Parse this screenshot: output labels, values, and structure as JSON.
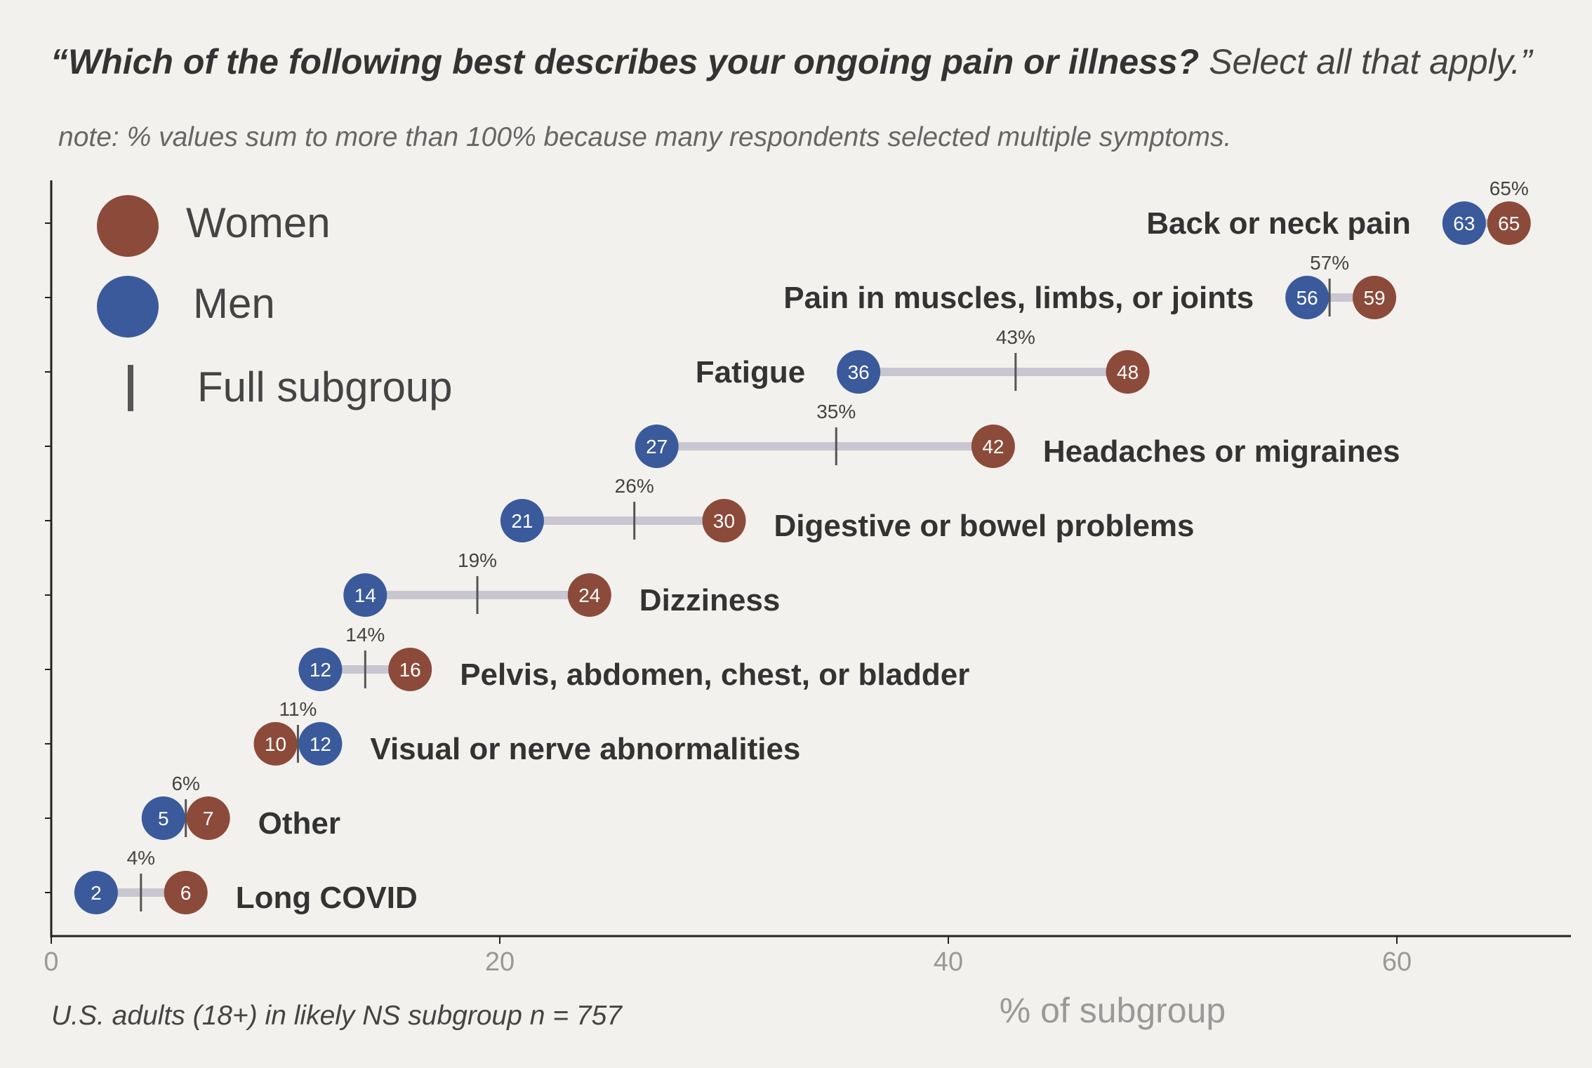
{
  "title": {
    "question": "“Which of the following best describes your ongoing pain or illness?",
    "instruction": "Select all that apply.”"
  },
  "note": "note: % values sum to more than 100% because many respondents selected multiple symptoms.",
  "legend": {
    "women": "Women",
    "men": "Men",
    "full": "Full subgroup"
  },
  "footer": "U.S. adults (18+) in likely NS subgroup n = 757",
  "colors": {
    "women": "#8c4a3a",
    "men": "#3a5a9c",
    "connector": "#c8c6d0",
    "full_tick": "#555555",
    "axis": "#222222"
  },
  "chart_data": {
    "type": "dumbbell",
    "xlabel": "% of subgroup",
    "xlim": [
      0,
      67
    ],
    "xticks": [
      0,
      20,
      40,
      60
    ],
    "series": [
      {
        "name": "Women"
      },
      {
        "name": "Men"
      },
      {
        "name": "Full subgroup"
      }
    ],
    "rows": [
      {
        "category": "Back or neck pain",
        "women": 65,
        "men": 63,
        "full": 65,
        "full_label": "65%",
        "label_side": "left"
      },
      {
        "category": "Pain in muscles, limbs, or joints",
        "women": 59,
        "men": 56,
        "full": 57,
        "full_label": "57%",
        "label_side": "left"
      },
      {
        "category": "Fatigue",
        "women": 48,
        "men": 36,
        "full": 43,
        "full_label": "43%",
        "label_side": "left"
      },
      {
        "category": "Headaches or migraines",
        "women": 42,
        "men": 27,
        "full": 35,
        "full_label": "35%",
        "label_side": "right"
      },
      {
        "category": "Digestive or bowel problems",
        "women": 30,
        "men": 21,
        "full": 26,
        "full_label": "26%",
        "label_side": "right"
      },
      {
        "category": "Dizziness",
        "women": 24,
        "men": 14,
        "full": 19,
        "full_label": "19%",
        "label_side": "right"
      },
      {
        "category": "Pelvis, abdomen, chest, or bladder",
        "women": 16,
        "men": 12,
        "full": 14,
        "full_label": "14%",
        "label_side": "right"
      },
      {
        "category": "Visual or nerve abnormalities",
        "women": 10,
        "men": 12,
        "full": 11,
        "full_label": "11%",
        "label_side": "right"
      },
      {
        "category": "Other",
        "women": 7,
        "men": 5,
        "full": 6,
        "full_label": "6%",
        "label_side": "right"
      },
      {
        "category": "Long COVID",
        "women": 6,
        "men": 2,
        "full": 4,
        "full_label": "4%",
        "label_side": "right"
      }
    ]
  }
}
